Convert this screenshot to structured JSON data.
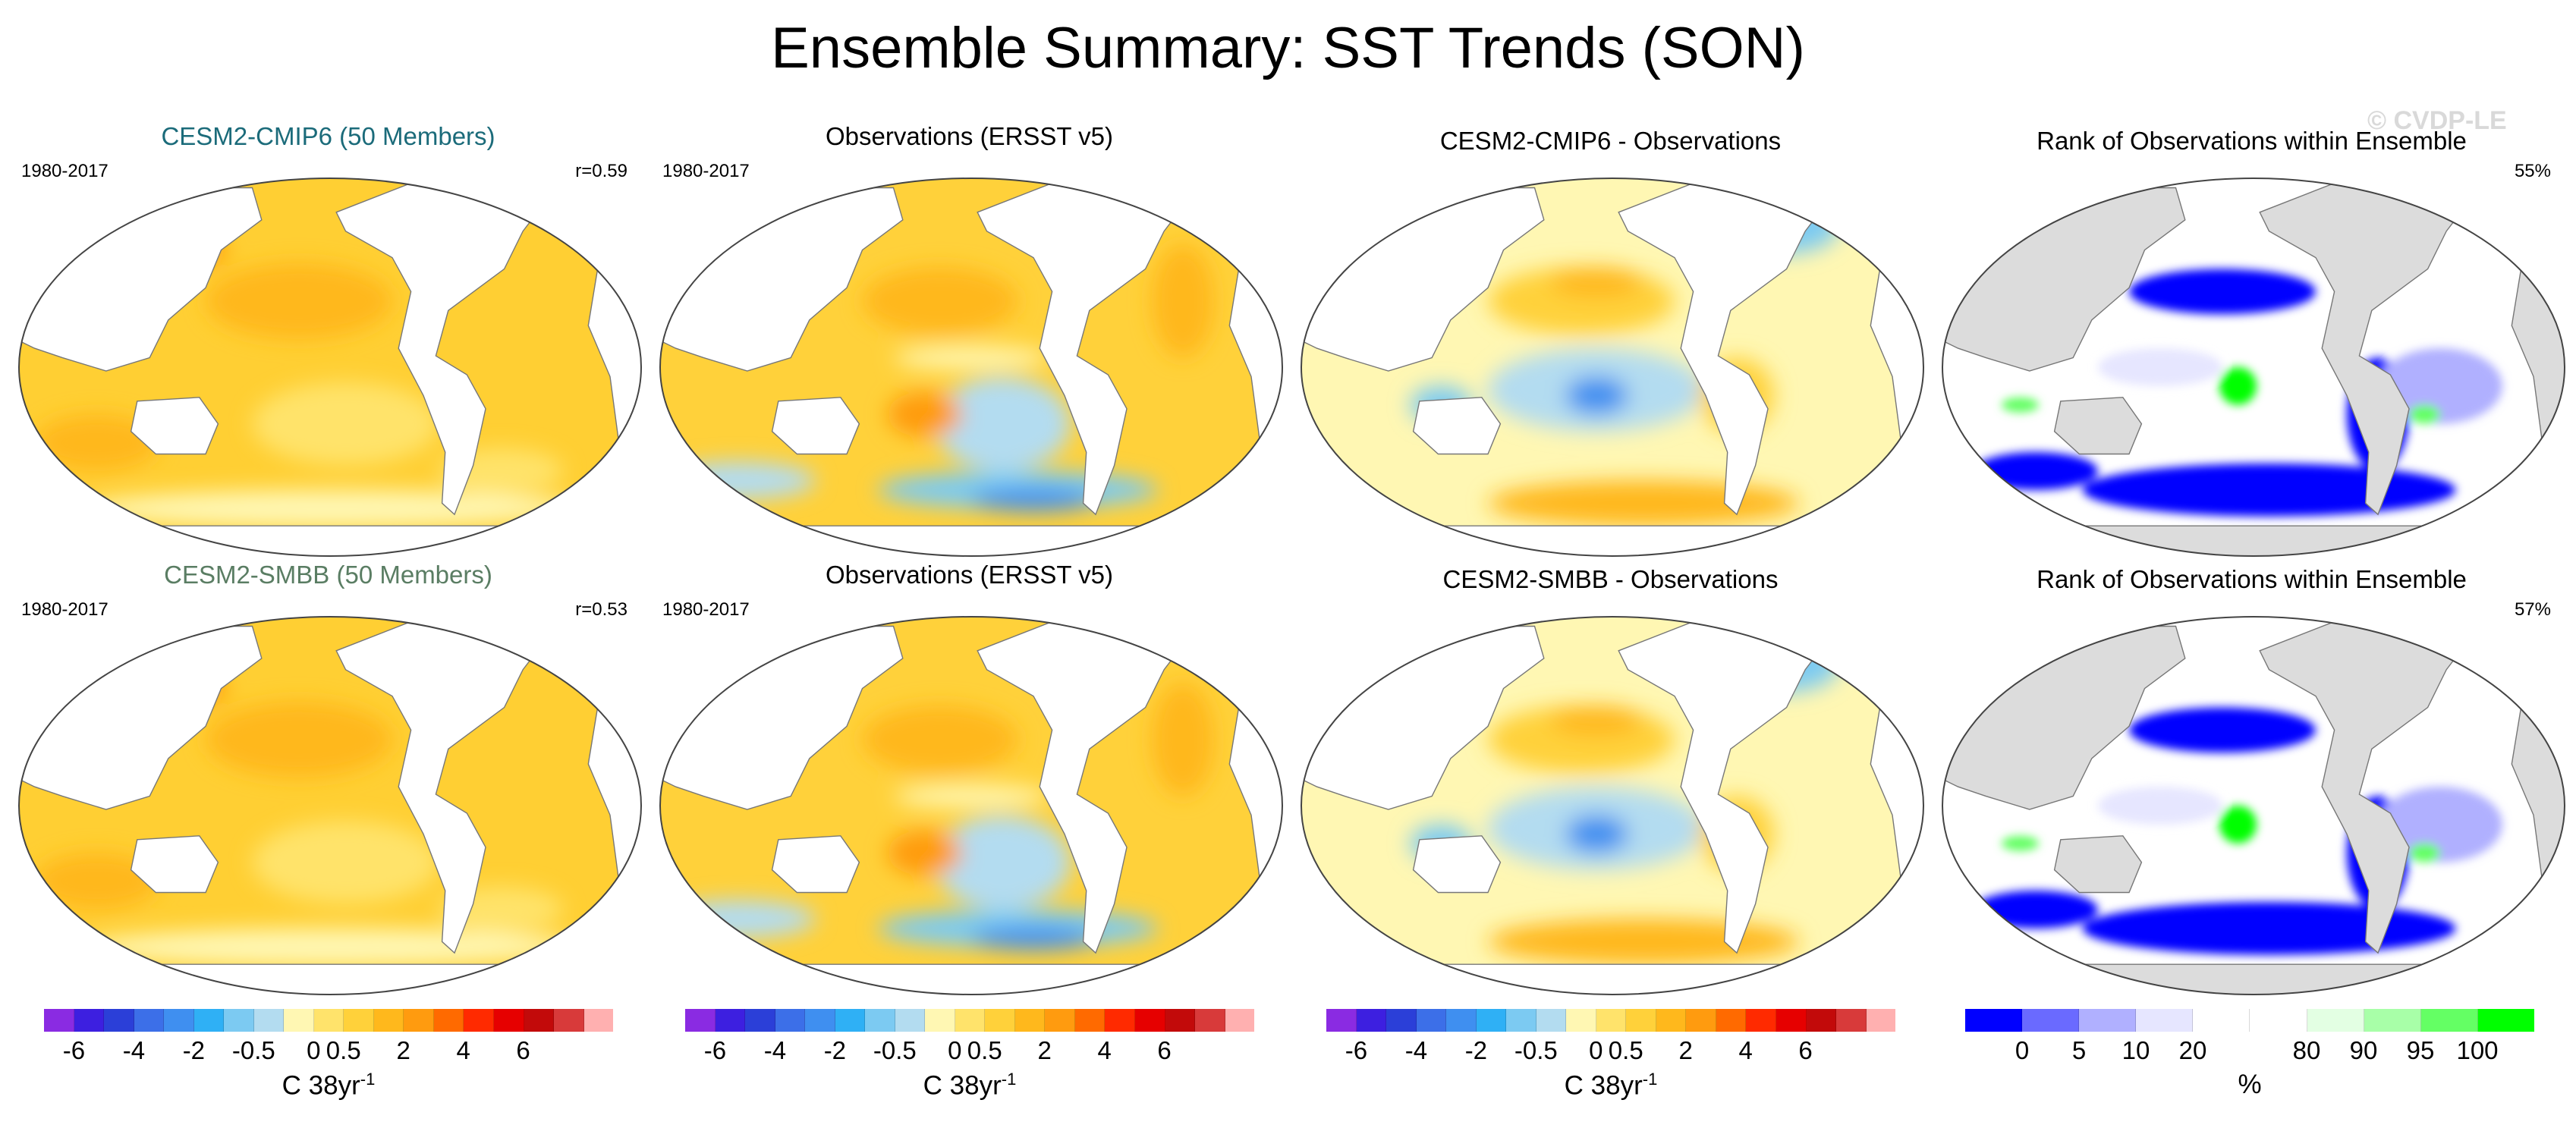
{
  "title": "Ensemble Summary: SST Trends (SON)",
  "watermark": "© CVDP-LE",
  "colors": {
    "model_title_1": "#1b6b7a",
    "model_title_2": "#5a7d63",
    "land": "#ffffff",
    "land_rank": "#dcdcdc",
    "coast": "#777777"
  },
  "rows": [
    {
      "panels": [
        {
          "title": "CESM2-CMIP6 (50 Members)",
          "years": "1980-2017",
          "corr": "r=0.59",
          "kind": "model"
        },
        {
          "title": "Observations (ERSST v5)",
          "years": "1980-2017",
          "corr": "",
          "kind": "obs"
        },
        {
          "title": "CESM2-CMIP6 - Observations",
          "years": "",
          "corr": "",
          "kind": "diff"
        },
        {
          "title": "Rank of Observations within Ensemble",
          "years": "",
          "corr": "55%",
          "kind": "rank"
        }
      ]
    },
    {
      "panels": [
        {
          "title": "CESM2-SMBB (50 Members)",
          "years": "1980-2017",
          "corr": "r=0.53",
          "kind": "model"
        },
        {
          "title": "Observations (ERSST v5)",
          "years": "1980-2017",
          "corr": "",
          "kind": "obs"
        },
        {
          "title": "CESM2-SMBB - Observations",
          "years": "",
          "corr": "",
          "kind": "diff"
        },
        {
          "title": "Rank of Observations within Ensemble",
          "years": "",
          "corr": "57%",
          "kind": "rank"
        }
      ]
    }
  ],
  "trend_colorbar": {
    "colors": [
      "#8a2be2",
      "#3d1fe0",
      "#2b3fd8",
      "#3c6fe8",
      "#3f8ff0",
      "#2fb0f5",
      "#7ccaf2",
      "#b3dcf0",
      "#fff7b3",
      "#ffe36b",
      "#ffd13a",
      "#ffb81c",
      "#ff9b0f",
      "#ff6a00",
      "#ff2a00",
      "#e60000",
      "#c20a0a",
      "#d83a3a",
      "#ffb0b0"
    ],
    "ticks": [
      "-6",
      "-4",
      "-2",
      "-0.5",
      "0",
      "0.5",
      "2",
      "4",
      "6"
    ],
    "tick_bounds": [
      1,
      3,
      5,
      7,
      9,
      10,
      12,
      14,
      16
    ],
    "label": "C 38yr",
    "label_sup": "-1"
  },
  "rank_colorbar": {
    "colors": [
      "#0000ff",
      "#6a6aff",
      "#b0b0ff",
      "#e6e6ff",
      "#ffffff",
      "#ffffff",
      "#e3ffe3",
      "#a8ffa8",
      "#64ff64",
      "#00ff00"
    ],
    "ticks": [
      "0",
      "5",
      "10",
      "20",
      "80",
      "90",
      "95",
      "100"
    ],
    "tick_bounds": [
      1,
      2,
      3,
      4,
      6,
      7,
      8,
      9
    ],
    "label": "%"
  }
}
